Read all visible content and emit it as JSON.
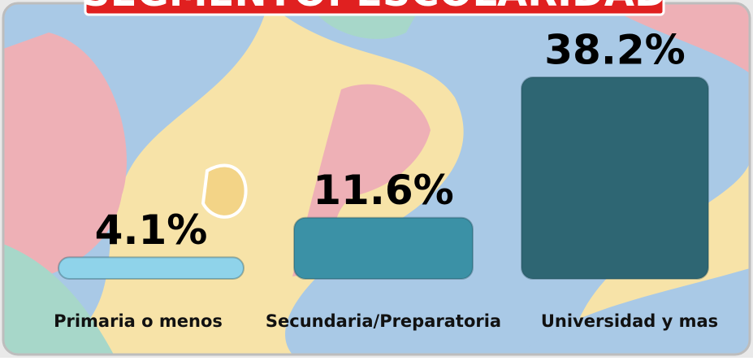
{
  "chart_data": {
    "type": "bar",
    "title": "SEGMENTO: ESCOLARIDAD",
    "categories": [
      "Primaria o menos",
      "Secundaria/Preparatoria",
      "Universidad y mas"
    ],
    "values": [
      4.1,
      11.6,
      38.2
    ],
    "value_labels": [
      "4.1%",
      "11.6%",
      "38.2%"
    ],
    "colors": [
      "#8fd3ea",
      "#3b91a6",
      "#2e6673"
    ]
  }
}
